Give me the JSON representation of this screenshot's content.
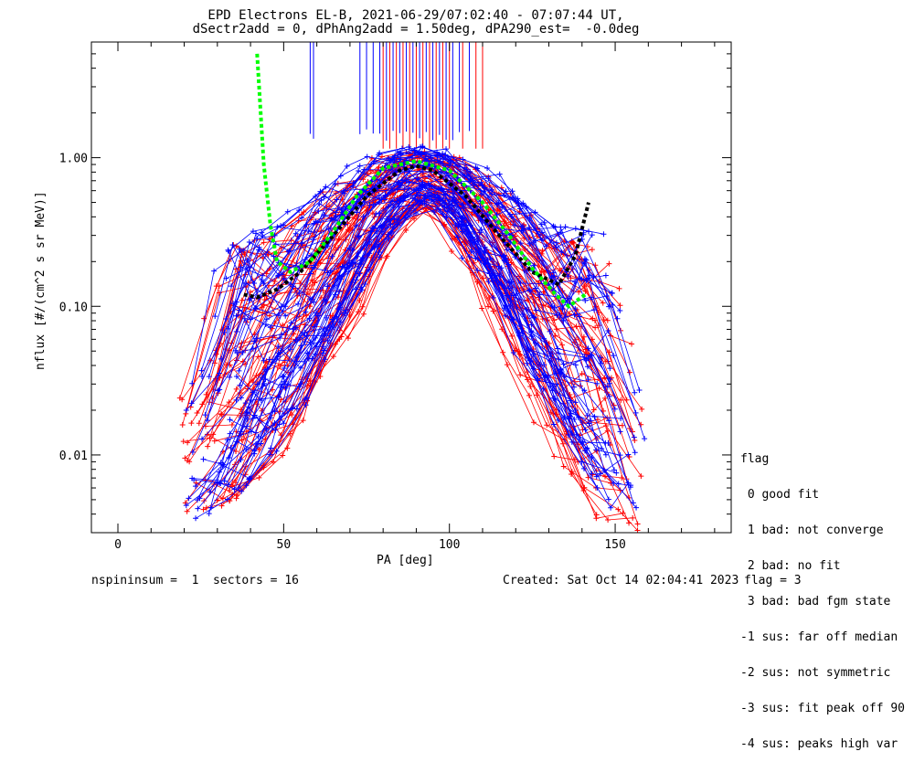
{
  "title_line1": "EPD Electrons EL-B, 2021-06-29/07:02:40 - 07:07:44 UT,",
  "title_line2": "dSectr2add = 0, dPhAng2add = 1.50deg, dPA290_est=  -0.0deg",
  "footer": {
    "left": "nspininsum =  1  sectors = 16",
    "created": "Created: Sat Oct 14 02:04:41 2023",
    "flag": "flag = 3"
  },
  "legend": {
    "title": "flag",
    "items": [
      " 0 good fit",
      " 1 bad: not converge",
      " 2 bad: no fit",
      " 3 bad: bad fgm state",
      "-1 sus: far off median",
      "-2 sus: not symmetric",
      "-3 sus: fit peak off 90",
      "-4 sus: peaks high var"
    ]
  },
  "chart_data": {
    "type": "line",
    "xlabel": "PA [deg]",
    "ylabel": "nflux [#/(cm^2 s sr MeV)]",
    "xlim": [
      -8,
      185
    ],
    "ylim": [
      0.003,
      6.0
    ],
    "yscale": "log",
    "xticks": [
      0,
      50,
      100,
      150
    ],
    "xtick_labels": [
      "0",
      "50",
      "100",
      "150"
    ],
    "yticks": [
      0.01,
      0.1,
      1.0
    ],
    "ytick_labels": [
      "0.01",
      "0.10",
      "1.00"
    ],
    "grid": false,
    "series_colors": {
      "red": "#ff0000",
      "blue": "#0000ff",
      "green": "#00ff00",
      "black": "#000000"
    },
    "red_envelope": {
      "pa": [
        22,
        35,
        50,
        65,
        80,
        90,
        100,
        115,
        130,
        145,
        158
      ],
      "low": [
        0.004,
        0.005,
        0.012,
        0.05,
        0.25,
        0.5,
        0.35,
        0.08,
        0.015,
        0.004,
        0.003
      ],
      "high": [
        0.025,
        0.25,
        0.3,
        0.6,
        1.0,
        1.1,
        1.0,
        0.6,
        0.3,
        0.25,
        0.03
      ]
    },
    "blue_envelope": {
      "pa": [
        22,
        35,
        50,
        65,
        80,
        90,
        100,
        115,
        130,
        145,
        158
      ],
      "low": [
        0.0035,
        0.006,
        0.015,
        0.07,
        0.3,
        0.5,
        0.4,
        0.1,
        0.02,
        0.005,
        0.0035
      ],
      "high": [
        0.02,
        0.3,
        0.35,
        0.7,
        1.1,
        1.2,
        1.1,
        0.7,
        0.35,
        0.3,
        0.02
      ]
    },
    "green_fit": {
      "pa": [
        42,
        44,
        46,
        48,
        52,
        58,
        65,
        72,
        80,
        90,
        100,
        110,
        118,
        125,
        132,
        136,
        141
      ],
      "y": [
        5.0,
        0.9,
        0.35,
        0.2,
        0.17,
        0.2,
        0.32,
        0.55,
        0.85,
        0.95,
        0.82,
        0.5,
        0.3,
        0.18,
        0.12,
        0.1,
        0.12
      ]
    },
    "black_fit": {
      "pa": [
        38,
        42,
        48,
        55,
        65,
        75,
        85,
        90,
        95,
        105,
        115,
        125,
        133,
        138,
        142
      ],
      "y": [
        0.12,
        0.115,
        0.13,
        0.17,
        0.3,
        0.55,
        0.82,
        0.88,
        0.82,
        0.55,
        0.3,
        0.17,
        0.14,
        0.22,
        0.5
      ]
    },
    "vertical_lines": {
      "red_pa": [
        80,
        82,
        84,
        86,
        88,
        90,
        92,
        94,
        96,
        98,
        100,
        104,
        108,
        110
      ],
      "blue_pa": [
        58,
        59,
        73,
        75,
        77,
        79,
        81,
        83,
        85,
        87,
        89,
        91,
        93,
        95,
        97,
        99,
        101,
        103,
        106
      ]
    },
    "n_red_curves": 55,
    "n_blue_curves": 55
  }
}
